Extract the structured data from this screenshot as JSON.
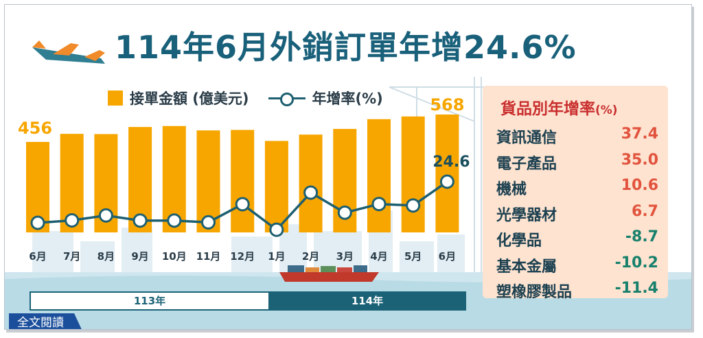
{
  "title": "114年6月外銷訂單年增24.6%",
  "legend": {
    "bar_label": "接單金額 (億美元)",
    "line_label": "年增率(%)"
  },
  "chart_data": {
    "type": "bar",
    "categories": [
      "6月",
      "7月",
      "8月",
      "9月",
      "10月",
      "11月",
      "12月",
      "1月",
      "2月",
      "3月",
      "4月",
      "5月",
      "6月"
    ],
    "series": [
      {
        "name": "接單金額 (億美元)",
        "values": [
          456,
          489,
          488,
          517,
          521,
          503,
          505,
          460,
          486,
          509,
          549,
          560,
          568
        ]
      },
      {
        "name": "年增率(%)",
        "values": [
          -1.0,
          0.5,
          3.6,
          0.4,
          0.4,
          -0.7,
          10.6,
          -5.3,
          17.8,
          5.3,
          10.7,
          9.8,
          24.6
        ]
      }
    ],
    "data_labels": {
      "first_bar": "456",
      "last_bar": "568",
      "last_point": "24.6"
    },
    "year_groups": [
      {
        "label": "113年"
      },
      {
        "label": "114年"
      }
    ],
    "ylim_bar": [
      0,
      600
    ],
    "ylim_rate": [
      -10,
      35
    ],
    "colors": {
      "bar": "#f7a600",
      "line": "#1d5f70",
      "label": "#f7a600"
    }
  },
  "panel": {
    "title": "貨品別年增率",
    "unit": "(%)",
    "items": [
      {
        "name": "資訊通信",
        "value": "37.4",
        "color": "#e2533d"
      },
      {
        "name": "電子產品",
        "value": "35.0",
        "color": "#e2533d"
      },
      {
        "name": "機械",
        "value": "10.6",
        "color": "#e2533d"
      },
      {
        "name": "光學器材",
        "value": "6.7",
        "color": "#e2533d"
      },
      {
        "name": "化學品",
        "value": "-8.7",
        "color": "#17806c"
      },
      {
        "name": "基本金屬",
        "value": "-10.2",
        "color": "#17806c"
      },
      {
        "name": "塑橡膠製品",
        "value": "-11.4",
        "color": "#17806c"
      }
    ]
  },
  "read_button": "全文閱讀"
}
